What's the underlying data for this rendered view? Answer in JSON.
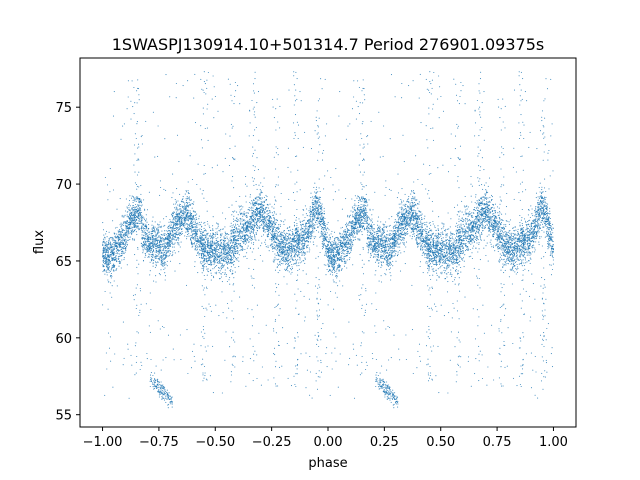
{
  "chart_data": {
    "type": "scatter",
    "title": "1SWASPJ130914.10+501314.7 Period 276901.09375s",
    "xlabel": "phase",
    "ylabel": "flux",
    "xlim": [
      -1.1,
      1.1
    ],
    "ylim": [
      54.2,
      78.2
    ],
    "xticks": [
      -1.0,
      -0.75,
      -0.5,
      -0.25,
      0.0,
      0.25,
      0.5,
      0.75,
      1.0
    ],
    "xtick_labels": [
      "−1.00",
      "−0.75",
      "−0.50",
      "−0.25",
      "0.00",
      "0.25",
      "0.50",
      "0.75",
      "1.00"
    ],
    "yticks": [
      55,
      60,
      65,
      70,
      75
    ],
    "ytick_labels": [
      "55",
      "60",
      "65",
      "70",
      "75"
    ],
    "grid": false,
    "point_color": "#1f77b4",
    "series": [
      {
        "phase_curve": [
          [
            0.0,
            65.6
          ],
          [
            0.03,
            65.2
          ],
          [
            0.06,
            65.6
          ],
          [
            0.08,
            66.2
          ],
          [
            0.1,
            66.6
          ],
          [
            0.12,
            67.6
          ],
          [
            0.15,
            68.0
          ],
          [
            0.17,
            68.2
          ],
          [
            0.18,
            66.8
          ],
          [
            0.2,
            66.4
          ],
          [
            0.22,
            66.0
          ],
          [
            0.24,
            66.0
          ],
          [
            0.26,
            65.8
          ],
          [
            0.28,
            65.6
          ],
          [
            0.3,
            66.6
          ],
          [
            0.33,
            67.4
          ],
          [
            0.36,
            67.8
          ],
          [
            0.38,
            68.0
          ],
          [
            0.4,
            67.2
          ],
          [
            0.42,
            66.4
          ],
          [
            0.44,
            65.9
          ],
          [
            0.47,
            65.7
          ],
          [
            0.5,
            65.7
          ],
          [
            0.53,
            65.6
          ],
          [
            0.56,
            65.4
          ],
          [
            0.6,
            66.6
          ],
          [
            0.64,
            67.2
          ],
          [
            0.67,
            67.8
          ],
          [
            0.7,
            68.3
          ],
          [
            0.73,
            67.6
          ],
          [
            0.76,
            66.6
          ],
          [
            0.79,
            66.0
          ],
          [
            0.82,
            65.6
          ],
          [
            0.85,
            66.0
          ],
          [
            0.88,
            66.4
          ],
          [
            0.91,
            66.8
          ],
          [
            0.93,
            67.6
          ],
          [
            0.95,
            68.6
          ],
          [
            0.97,
            67.8
          ],
          [
            1.0,
            65.6
          ]
        ],
        "spread": 0.7,
        "dip_segment": {
          "phase_range": [
            0.21,
            0.31
          ],
          "flux_range": [
            57.4,
            55.8
          ]
        },
        "spike_phases": [
          0.15,
          0.45,
          0.58,
          0.67,
          0.77,
          0.86,
          0.96
        ]
      }
    ]
  }
}
